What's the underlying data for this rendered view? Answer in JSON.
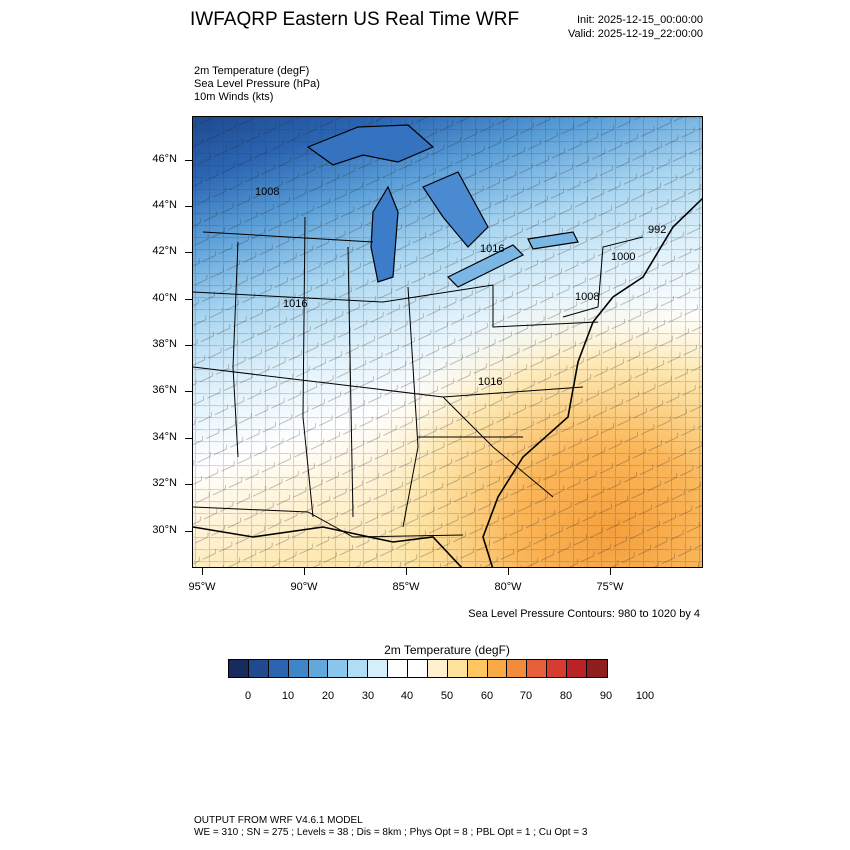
{
  "header": {
    "title": "IWFAQRP Eastern US Real Time WRF",
    "init": "Init: 2025-12-15_00:00:00",
    "valid": "Valid: 2025-12-19_22:00:00"
  },
  "fields": [
    "2m Temperature   (degF)",
    "Sea Level Pressure   (hPa)",
    "10m Winds   (kts)"
  ],
  "map": {
    "latitude_labels": [
      "46°N",
      "44°N",
      "42°N",
      "40°N",
      "38°N",
      "36°N",
      "34°N",
      "32°N",
      "30°N"
    ],
    "longitude_labels": [
      "95°W",
      "90°W",
      "85°W",
      "80°W",
      "75°W"
    ],
    "pressure_contour_labels": [
      "1008",
      "1016",
      "1016",
      "1008",
      "1000",
      "992",
      "1016"
    ],
    "contour_note": "Sea Level Pressure Contours: 980 to 1020 by 4"
  },
  "colorbar": {
    "title": "2m Temperature  (degF)",
    "colors": [
      "#182b5e",
      "#1f4a8f",
      "#2b65b1",
      "#3f86c8",
      "#63a8dd",
      "#8bc6ec",
      "#b0dcf4",
      "#d6eefa",
      "#ffffff",
      "#ffffff",
      "#fff1cf",
      "#fee49a",
      "#fdc660",
      "#f9aa45",
      "#f38c3a",
      "#e8603a",
      "#d63c30",
      "#bb2228",
      "#911e1e"
    ],
    "labels": [
      "0",
      "10",
      "20",
      "30",
      "40",
      "50",
      "60",
      "70",
      "80",
      "90",
      "100"
    ]
  },
  "footer": {
    "line1": "OUTPUT FROM WRF V4.6.1 MODEL",
    "line2": "WE = 310 ; SN = 275 ; Levels = 38 ; Dis = 8km ; Phys Opt = 8 ; PBL Opt = 1 ; Cu Opt = 3"
  }
}
